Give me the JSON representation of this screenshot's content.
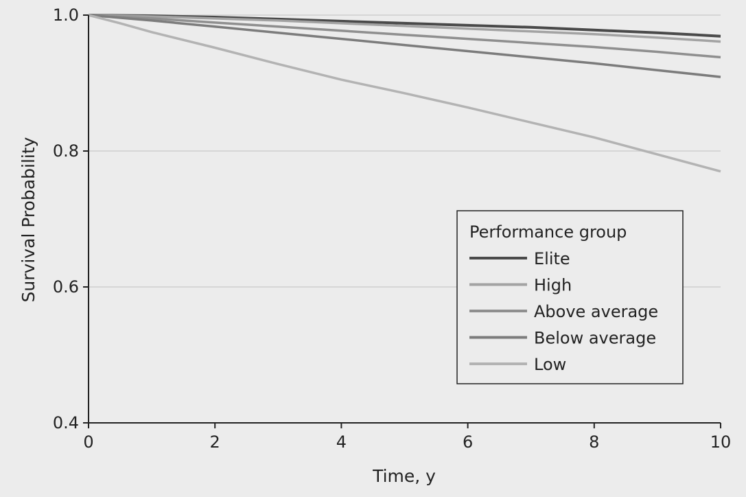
{
  "chart_data": {
    "type": "line",
    "title": "",
    "xlabel": "Time, y",
    "ylabel": "Survival Probability",
    "xlim": [
      0,
      10
    ],
    "ylim": [
      0.4,
      1.0
    ],
    "xticks": [
      "0",
      "2",
      "4",
      "6",
      "8",
      "10"
    ],
    "yticks": [
      "0.4",
      "0.6",
      "0.8",
      "1.0"
    ],
    "grid": "horizontal",
    "legend": {
      "title": "Performance group",
      "placement": "right"
    },
    "series": [
      {
        "name": "Elite",
        "color": "#4a4a4a",
        "x": [
          0,
          1,
          2,
          3,
          4,
          5,
          6,
          7,
          8,
          9,
          10
        ],
        "values": [
          1.0,
          0.999,
          0.997,
          0.994,
          0.991,
          0.988,
          0.985,
          0.982,
          0.978,
          0.974,
          0.969
        ]
      },
      {
        "name": "High",
        "color": "#a3a3a3",
        "x": [
          0,
          1,
          2,
          3,
          4,
          5,
          6,
          7,
          8,
          9,
          10
        ],
        "values": [
          1.0,
          0.998,
          0.995,
          0.992,
          0.988,
          0.984,
          0.98,
          0.976,
          0.972,
          0.967,
          0.961
        ]
      },
      {
        "name": "Above average",
        "color": "#8f8f8f",
        "x": [
          0,
          1,
          2,
          3,
          4,
          5,
          6,
          7,
          8,
          9,
          10
        ],
        "values": [
          1.0,
          0.995,
          0.989,
          0.983,
          0.977,
          0.971,
          0.965,
          0.959,
          0.953,
          0.946,
          0.938
        ]
      },
      {
        "name": "Below average",
        "color": "#7c7c7c",
        "x": [
          0,
          1,
          2,
          3,
          4,
          5,
          6,
          7,
          8,
          9,
          10
        ],
        "values": [
          1.0,
          0.992,
          0.983,
          0.974,
          0.965,
          0.956,
          0.947,
          0.938,
          0.929,
          0.919,
          0.909
        ]
      },
      {
        "name": "Low",
        "color": "#b3b3b3",
        "x": [
          0,
          0.5,
          1,
          2,
          3,
          4,
          5,
          6,
          7,
          8,
          9,
          10
        ],
        "values": [
          1.0,
          0.988,
          0.975,
          0.952,
          0.928,
          0.905,
          0.885,
          0.864,
          0.842,
          0.82,
          0.795,
          0.77
        ]
      }
    ]
  }
}
